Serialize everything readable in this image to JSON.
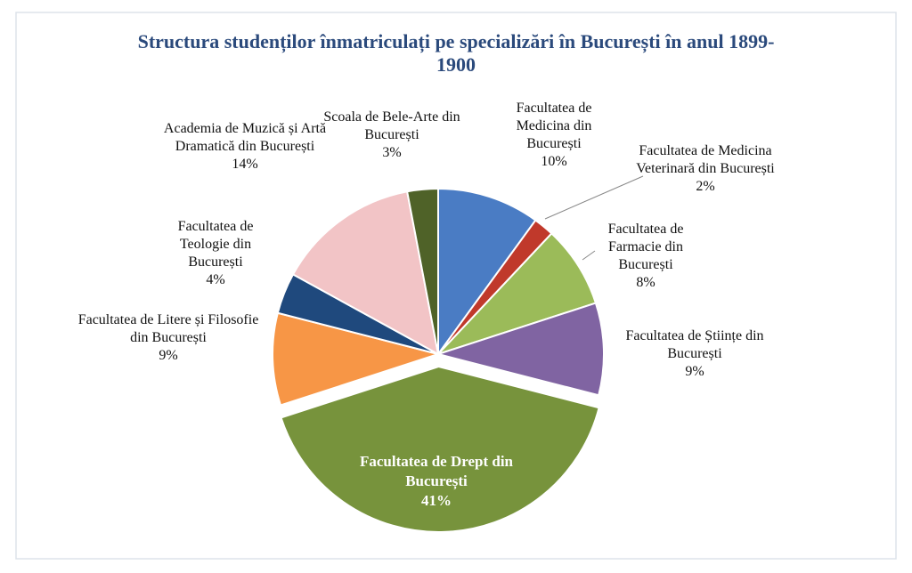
{
  "chart_data": {
    "type": "pie",
    "title": "Structura studenților înmatriculați pe specializări în București în anul 1899-1900",
    "categories": [
      "Facultatea de Medicina din București",
      "Facultatea de Medicina Veterinară din București",
      "Facultatea de Farmacie din București",
      "Facultatea de Științe din București",
      "Facultatea de Drept din București",
      "Facultatea de Litere și Filosofie din București",
      "Facultatea de Teologie din București",
      "Academia de Muzică și Artă Dramatică din București",
      "Scoala de Bele-Arte din București"
    ],
    "values": [
      10,
      2,
      8,
      9,
      41,
      9,
      4,
      14,
      3
    ],
    "value_labels": [
      "10%",
      "2%",
      "8%",
      "9%",
      "41%",
      "9%",
      "4%",
      "14%",
      "3%"
    ],
    "colors": [
      "#4a7cc4",
      "#c0392b",
      "#9bbb59",
      "#8064a2",
      "#77933c",
      "#f79646",
      "#1f497d",
      "#f2c4c6",
      "#4f6228"
    ]
  }
}
